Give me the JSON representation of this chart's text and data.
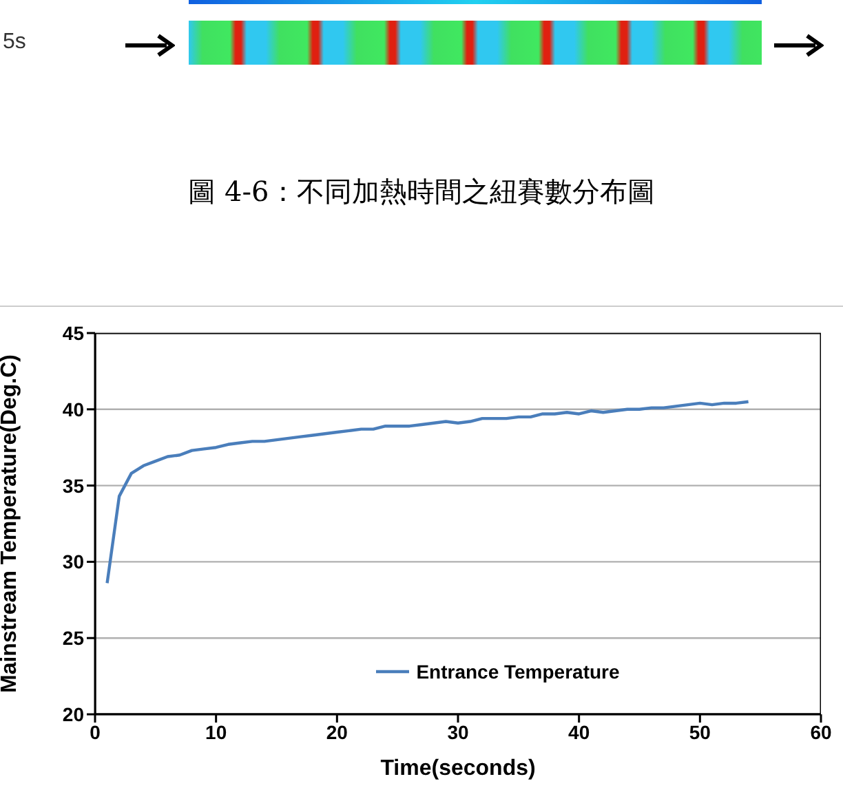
{
  "chart_data": {
    "type": "line",
    "annotations": [
      "5s",
      "圖 4-6：不同加熱時間之紐賽數分布圖"
    ],
    "xlabel": "Time(seconds)",
    "ylabel": "Mainstream Temperature(Deg.C)",
    "x": [
      1,
      2,
      3,
      4,
      5,
      6,
      7,
      8,
      9,
      10,
      11,
      12,
      13,
      14,
      15,
      16,
      17,
      18,
      19,
      20,
      21,
      22,
      23,
      24,
      25,
      26,
      27,
      28,
      29,
      30,
      31,
      32,
      33,
      34,
      35,
      36,
      37,
      38,
      39,
      40,
      41,
      42,
      43,
      44,
      45,
      46,
      47,
      48,
      49,
      50,
      51,
      52,
      53,
      54
    ],
    "series": [
      {
        "name": "Entrance Temperature",
        "color": "#4a7ebb",
        "values": [
          28.6,
          34.3,
          35.8,
          36.3,
          36.6,
          36.9,
          37.0,
          37.3,
          37.4,
          37.5,
          37.7,
          37.8,
          37.9,
          37.9,
          38.0,
          38.1,
          38.2,
          38.3,
          38.4,
          38.5,
          38.6,
          38.7,
          38.7,
          38.9,
          38.9,
          38.9,
          39.0,
          39.1,
          39.2,
          39.1,
          39.2,
          39.4,
          39.4,
          39.4,
          39.5,
          39.5,
          39.7,
          39.7,
          39.8,
          39.7,
          39.9,
          39.8,
          39.9,
          40.0,
          40.0,
          40.1,
          40.1,
          40.2,
          40.3,
          40.4,
          40.3,
          40.4,
          40.4,
          40.5
        ]
      }
    ],
    "xlim": [
      0,
      60
    ],
    "xticks": [
      0,
      10,
      20,
      30,
      40,
      50,
      60
    ],
    "ylim": [
      20,
      45
    ],
    "yticks": [
      20,
      25,
      30,
      35,
      40,
      45
    ],
    "grid": "y",
    "legend": "bottom",
    "marker": "none",
    "line_style": "solid"
  }
}
